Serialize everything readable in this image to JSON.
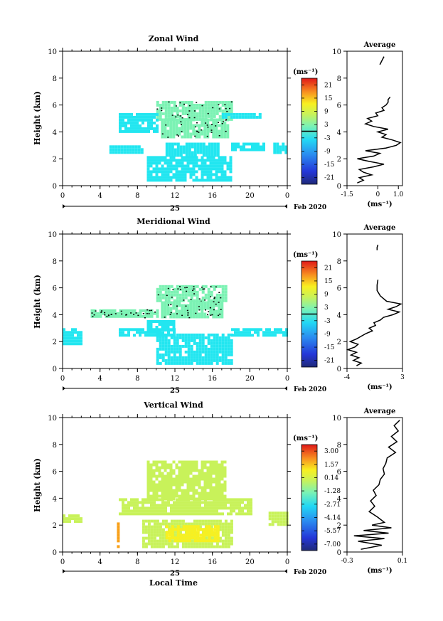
{
  "figure": {
    "xlabel": "Local Time",
    "date_label": "25",
    "month_label": "Feb 2020",
    "average_title": "Average",
    "unit_label": "(ms⁻¹)",
    "avg_unit_label": "(ms⁻¹)"
  },
  "colors": {
    "cyan": "#22e6f0",
    "light_green": "#7cf2b4",
    "yellow_green": "#c8f25a",
    "yellow": "#f8f020",
    "orange": "#f8a018"
  },
  "chart_data": [
    {
      "type": "heatmap",
      "title": "Zonal Wind",
      "ylabel": "Height (km)",
      "xlim": [
        0,
        24
      ],
      "ylim": [
        0,
        10
      ],
      "xticks": [
        "0",
        "4",
        "8",
        "12",
        "16",
        "20",
        "0"
      ],
      "yticks": [
        "0",
        "2",
        "4",
        "6",
        "8",
        "10"
      ],
      "colorbar": {
        "ticks": [
          "21",
          "15",
          "9",
          "3",
          "-3",
          "-9",
          "-15",
          "-21"
        ],
        "range": [
          -24,
          24
        ],
        "zero_line": true
      },
      "regions": [
        {
          "x": [
            9.0,
            18.0
          ],
          "y": [
            0.4,
            2.2
          ],
          "value": -6,
          "color": "cyan"
        },
        {
          "x": [
            11.0,
            16.5
          ],
          "y": [
            2.2,
            3.2
          ],
          "value": -3,
          "color": "cyan"
        },
        {
          "x": [
            10.5,
            17.5
          ],
          "y": [
            3.6,
            5.0
          ],
          "value": 1,
          "color": "light_green"
        },
        {
          "x": [
            10.0,
            18.0
          ],
          "y": [
            5.0,
            6.3
          ],
          "value": 1,
          "color": "light_green"
        },
        {
          "x": [
            6.0,
            10.0
          ],
          "y": [
            4.0,
            5.4
          ],
          "value": -4,
          "color": "cyan"
        },
        {
          "x": [
            5.0,
            8.5
          ],
          "y": [
            2.4,
            3.0
          ],
          "value": -5,
          "color": "cyan"
        },
        {
          "x": [
            17.0,
            21.0
          ],
          "y": [
            5.0,
            5.4
          ],
          "value": -4,
          "color": "cyan"
        },
        {
          "x": [
            18.0,
            21.5
          ],
          "y": [
            2.6,
            3.2
          ],
          "value": -4,
          "color": "cyan"
        },
        {
          "x": [
            22.5,
            24.0
          ],
          "y": [
            2.4,
            3.2
          ],
          "value": -4,
          "color": "cyan"
        }
      ],
      "average_profile": {
        "xlim": [
          -1.5,
          1.2
        ],
        "xticks": [
          "-1.5",
          "0",
          "1.0"
        ],
        "height": [
          0.2,
          0.4,
          0.6,
          0.8,
          1.0,
          1.2,
          1.4,
          1.6,
          1.8,
          2.0,
          2.2,
          2.4,
          2.6,
          2.8,
          3.0,
          3.2,
          3.4,
          3.6,
          3.8,
          4.0,
          4.2,
          4.4,
          4.6,
          4.8,
          5.0,
          5.2,
          5.4,
          5.6,
          5.8,
          6.0,
          6.2,
          6.4,
          6.6
        ],
        "value": [
          -1.0,
          -0.7,
          -0.9,
          -0.3,
          -0.7,
          -0.9,
          -0.2,
          0.3,
          -0.4,
          -1.0,
          -0.2,
          0.1,
          -0.6,
          0.4,
          0.9,
          1.1,
          0.7,
          0.2,
          0.4,
          0.0,
          0.5,
          -0.2,
          -0.6,
          -0.3,
          -0.5,
          0.0,
          -0.1,
          0.3,
          0.2,
          0.4,
          0.5,
          0.5,
          0.6
        ],
        "upper": {
          "height": [
            9.0,
            9.3,
            9.6
          ],
          "value": [
            0.1,
            0.2,
            0.3
          ]
        }
      }
    },
    {
      "type": "heatmap",
      "title": "Meridional Wind",
      "ylabel": "Height (km)",
      "xlim": [
        0,
        24
      ],
      "ylim": [
        0,
        10
      ],
      "xticks": [
        "0",
        "4",
        "8",
        "12",
        "16",
        "20",
        "0"
      ],
      "yticks": [
        "0",
        "2",
        "4",
        "6",
        "8",
        "10"
      ],
      "colorbar": {
        "ticks": [
          "21",
          "15",
          "9",
          "3",
          "-3",
          "-9",
          "-15",
          "-21"
        ],
        "range": [
          -24,
          24
        ],
        "zero_line": true
      },
      "regions": [
        {
          "x": [
            10.0,
            18.0
          ],
          "y": [
            0.4,
            2.6
          ],
          "value": -7,
          "color": "cyan"
        },
        {
          "x": [
            10.0,
            17.5
          ],
          "y": [
            5.0,
            6.2
          ],
          "value": 1,
          "color": "light_green"
        },
        {
          "x": [
            10.5,
            17.0
          ],
          "y": [
            3.8,
            5.0
          ],
          "value": 1,
          "color": "light_green"
        },
        {
          "x": [
            3.0,
            10.0
          ],
          "y": [
            3.8,
            4.4
          ],
          "value": 2,
          "color": "light_green"
        },
        {
          "x": [
            0.0,
            2.0
          ],
          "y": [
            1.8,
            3.0
          ],
          "value": -6,
          "color": "cyan"
        },
        {
          "x": [
            6.0,
            12.0
          ],
          "y": [
            2.4,
            3.0
          ],
          "value": -4,
          "color": "cyan"
        },
        {
          "x": [
            18.0,
            24.0
          ],
          "y": [
            2.4,
            3.0
          ],
          "value": -4,
          "color": "cyan"
        },
        {
          "x": [
            9.0,
            12.0
          ],
          "y": [
            2.8,
            3.6
          ],
          "value": -3,
          "color": "cyan"
        }
      ],
      "average_profile": {
        "xlim": [
          -4,
          3
        ],
        "xticks": [
          "-4",
          "3"
        ],
        "height": [
          0.2,
          0.4,
          0.6,
          0.8,
          1.0,
          1.2,
          1.4,
          1.6,
          1.8,
          2.0,
          2.2,
          2.4,
          2.6,
          2.8,
          3.0,
          3.2,
          3.4,
          3.6,
          3.8,
          4.0,
          4.2,
          4.4,
          4.6,
          4.8,
          5.0,
          5.4,
          5.8,
          6.2,
          6.6
        ],
        "value": [
          -2.8,
          -2.2,
          -3.2,
          -2.5,
          -3.5,
          -2.8,
          -3.9,
          -3.0,
          -2.6,
          -3.6,
          -2.8,
          -2.2,
          -1.6,
          -0.8,
          -1.2,
          -0.4,
          -0.6,
          0.2,
          0.6,
          1.8,
          2.6,
          1.2,
          2.2,
          2.8,
          1.0,
          0.2,
          -0.2,
          -0.2,
          -0.1
        ],
        "upper": {
          "height": [
            8.8,
            9.0,
            9.2
          ],
          "value": [
            -0.2,
            -0.2,
            -0.1
          ]
        }
      }
    },
    {
      "type": "heatmap",
      "title": "Vertical Wind",
      "ylabel": "Height (km)",
      "xlabel": "Local Time",
      "xlim": [
        0,
        24
      ],
      "ylim": [
        0,
        10
      ],
      "xticks": [
        "0",
        "4",
        "8",
        "12",
        "16",
        "20",
        "0"
      ],
      "yticks": [
        "0",
        "2",
        "4",
        "6",
        "8",
        "10"
      ],
      "colorbar": {
        "ticks": [
          "3.00",
          "1.57",
          "0.14",
          "-1.28",
          "-2.71",
          "-4.14",
          "-5.57",
          "-7.00"
        ],
        "range": [
          -7.7,
          3.7
        ],
        "zero_line": false
      },
      "regions": [
        {
          "x": [
            9.0,
            17.5
          ],
          "y": [
            4.0,
            6.8
          ],
          "value": 0.0,
          "color": "yellow_green"
        },
        {
          "x": [
            6.0,
            20.0
          ],
          "y": [
            2.8,
            4.0
          ],
          "value": 0.0,
          "color": "yellow_green"
        },
        {
          "x": [
            8.5,
            18.0
          ],
          "y": [
            0.4,
            2.4
          ],
          "value": 0.1,
          "color": "yellow_green"
        },
        {
          "x": [
            0.0,
            2.0
          ],
          "y": [
            2.2,
            2.8
          ],
          "value": 0.0,
          "color": "yellow_green"
        },
        {
          "x": [
            22.0,
            24.0
          ],
          "y": [
            2.0,
            3.0
          ],
          "value": 0.0,
          "color": "yellow_green"
        },
        {
          "x": [
            11.0,
            16.5
          ],
          "y": [
            0.8,
            2.0
          ],
          "value": 0.6,
          "color": "yellow"
        },
        {
          "x": [
            5.8,
            6.0
          ],
          "y": [
            0.4,
            2.2
          ],
          "value": 1.2,
          "color": "orange"
        }
      ],
      "average_profile": {
        "xlim": [
          -0.3,
          0.1
        ],
        "xticks": [
          "-0.3",
          "0.1"
        ],
        "height": [
          0.2,
          0.5,
          0.8,
          1.0,
          1.2,
          1.4,
          1.6,
          1.8,
          2.0,
          2.2,
          2.6,
          3.0,
          3.4,
          3.8,
          4.2,
          4.6,
          5.0,
          5.4,
          5.8,
          6.2,
          6.6,
          7.0,
          7.4,
          7.8,
          8.2,
          8.6,
          9.0,
          9.4,
          9.8
        ],
        "value": [
          -0.2,
          -0.05,
          -0.22,
          -0.03,
          -0.25,
          0.0,
          -0.18,
          0.02,
          -0.12,
          -0.03,
          -0.08,
          -0.14,
          -0.1,
          -0.13,
          -0.09,
          -0.11,
          -0.07,
          -0.06,
          -0.03,
          -0.04,
          -0.02,
          -0.01,
          0.05,
          0.0,
          0.06,
          0.02,
          0.07,
          0.04,
          0.08
        ]
      }
    }
  ]
}
